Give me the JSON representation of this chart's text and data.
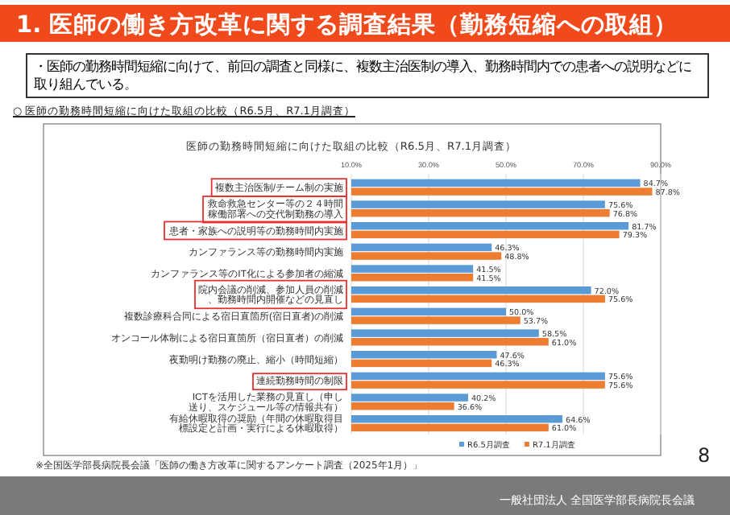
{
  "chart_data": {
    "type": "bar",
    "orientation": "horizontal",
    "title": "医師の勤務時間短縮に向けた取組の比較（R6.5月、R7.1月調査）",
    "categories": [
      "複数主治医制/チーム制の実施",
      "救命救急センター等の２４時間稼働部署への交代制勤務の導入",
      "患者・家族への説明等の勤務時間内実施",
      "カンファランス等の勤務時間内実施",
      "カンファランス等のIT化による参加者の縮減",
      "院内会議の削減、参加人員の削減、勤務時間内開催などの見直し",
      "複数診療科合同による宿日直箇所(宿日直者)の削減",
      "オンコール体制による宿日直箇所（宿日直者）の削減",
      "夜勤明け勤務の廃止、縮小（時間短縮）",
      "連続勤務時間の制限",
      "ICTを活用した業務の見直し（申し送り、スケジュール等の情報共有）",
      "有給休暇取得の奨励（年間の休暇取得目標設定と計画・実行による休暇取得）"
    ],
    "series": [
      {
        "name": "R6.5月調査",
        "color": "#5b9bd5",
        "values": [
          84.7,
          75.6,
          81.7,
          46.3,
          41.5,
          72.0,
          50.0,
          58.5,
          47.6,
          75.6,
          40.2,
          64.6
        ],
        "value_labels": [
          "84.7%",
          "75.6%",
          "81.7%",
          "46.3%",
          "41.5%",
          "72.0%",
          "50.0%",
          "58.5%",
          "47.6%",
          "75.6%",
          "40.2%",
          "64.6%"
        ]
      },
      {
        "name": "R7.1月調査",
        "color": "#ed7d31",
        "values": [
          87.8,
          76.8,
          79.3,
          48.8,
          41.5,
          75.6,
          53.7,
          61.0,
          46.3,
          75.6,
          36.6,
          61.0
        ],
        "value_labels": [
          "87.8%",
          "76.8%",
          "79.3%",
          "48.8%",
          "41.5%",
          "75.6%",
          "53.7%",
          "61.0%",
          "46.3%",
          "75.6%",
          "36.6%",
          "61.0%"
        ]
      }
    ],
    "xlim": [
      10,
      90
    ],
    "xticks": [
      {
        "value": 10,
        "label": "10.0%"
      },
      {
        "value": 30,
        "label": "30.0%"
      },
      {
        "value": 50,
        "label": "50.0%"
      },
      {
        "value": 70,
        "label": "70.0%"
      },
      {
        "value": 90,
        "label": "90.0%"
      }
    ],
    "grid": "x",
    "legend": "bottom",
    "annotations": [
      "1. 医師の働き方改革に関する調査結果（勤務短縮への取組）",
      "・医師の勤務時間短縮に向けて、前回の調査と同様に、複数主治医制の導入、勤務時間内での患者への説明などに取り組んでいる。",
      "○ 医師の勤務時間短縮に向けた取組の比較（R6.5月、R7.1月調査）",
      "※全国医学部長病院長会議「医師の働き方改革に関するアンケート調査（2025年1月）」",
      "8",
      "一般社団法人 全国医学部長病院長会議"
    ]
  }
}
